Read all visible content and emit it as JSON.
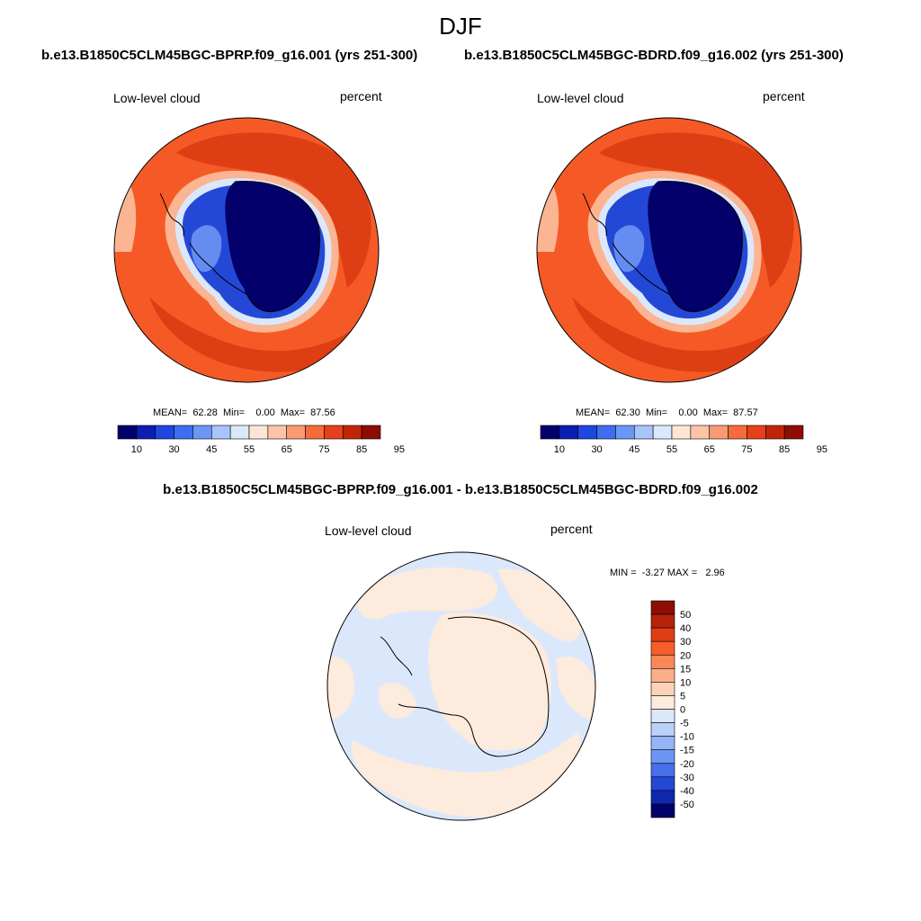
{
  "figure": {
    "title": "DJF",
    "case1": "b.e13.B1850C5CLM45BGC-BPRP.f09_g16.001 (yrs 251-300)",
    "case2": "b.e13.B1850C5CLM45BGC-BDRD.f09_g16.002 (yrs 251-300)",
    "diff_title": "b.e13.B1850C5CLM45BGC-BPRP.f09_g16.001 - b.e13.B1850C5CLM45BGC-BDRD.f09_g16.002"
  },
  "panels": [
    {
      "variable": "Low-level cloud",
      "units": "percent",
      "stats_text": "MEAN=  62.28  Min=    0.00  Max=  87.56",
      "mean": 62.28,
      "min": 0.0,
      "max": 87.56
    },
    {
      "variable": "Low-level cloud",
      "units": "percent",
      "stats_text": "MEAN=  62.30  Min=    0.00  Max=  87.57",
      "mean": 62.3,
      "min": 0.0,
      "max": 87.57
    }
  ],
  "diff_panel": {
    "variable": "Low-level cloud",
    "units": "percent",
    "stats_text": "MIN =  -3.27 MAX =   2.96",
    "min": -3.27,
    "max": 2.96
  },
  "colorbar_main": {
    "labels": [
      "10",
      "30",
      "45",
      "55",
      "65",
      "75",
      "85",
      "95"
    ],
    "colors": [
      "#03006b",
      "#0a1fb2",
      "#1f46e0",
      "#3d6ef0",
      "#6a96f6",
      "#a8c4fa",
      "#dbe8fc",
      "#fde6d6",
      "#fbc4a8",
      "#f99a72",
      "#f66b3a",
      "#e5401a",
      "#c02508",
      "#8f0c04"
    ]
  },
  "colorbar_diff": {
    "labels": [
      "50",
      "40",
      "30",
      "20",
      "15",
      "10",
      "5",
      "0",
      "-5",
      "-10",
      "-15",
      "-20",
      "-30",
      "-40",
      "-50"
    ],
    "colors": [
      "#8f0c04",
      "#b52309",
      "#e03d14",
      "#f85e2a",
      "#f98856",
      "#fbaf88",
      "#fdd2b8",
      "#fdebdd",
      "#dbe8fc",
      "#b9d1fb",
      "#94b5f8",
      "#6d95f4",
      "#4670ea",
      "#2448d6",
      "#0f27ad",
      "#03006b"
    ]
  },
  "map_colors": {
    "deep_blue": "#03006b",
    "blue_mid": "#2448d6",
    "blue_light": "#6d95f4",
    "red_dark": "#d93a12",
    "red_mid": "#f55a26",
    "peach": "#fbb592",
    "diff_pos": "#fdebdd",
    "diff_neg": "#dbe8fc"
  }
}
